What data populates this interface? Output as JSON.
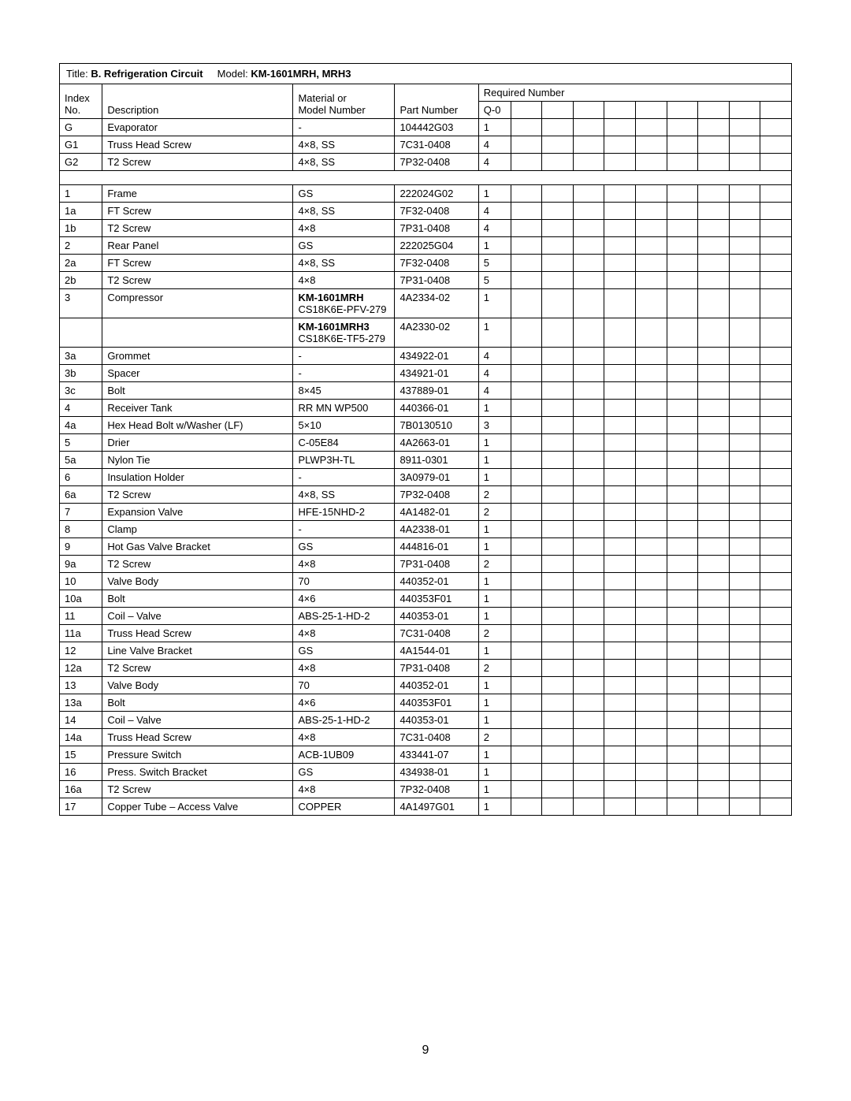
{
  "title_label": "Title: ",
  "title_value": "B. Refrigeration Circuit",
  "model_label": "Model: ",
  "model_value": "KM-1601MRH, MRH3",
  "required_number_label": "Required Number",
  "headers": {
    "index": "Index No.",
    "description": "Description",
    "material": "Material or Model Number",
    "part": "Part Number",
    "q0": "Q-0"
  },
  "rows": [
    {
      "idx": "G",
      "desc": "Evaporator",
      "mat": "-",
      "part": "104442G03",
      "q0": "1"
    },
    {
      "idx": "G1",
      "desc": "Truss Head Screw",
      "mat": "4×8, SS",
      "part": "7C31-0408",
      "q0": "4"
    },
    {
      "idx": "G2",
      "desc": "T2 Screw",
      "mat": "4×8, SS",
      "part": "7P32-0408",
      "q0": "4"
    }
  ],
  "rows2": [
    {
      "idx": "1",
      "desc": "Frame",
      "mat": "GS",
      "part": "222024G02",
      "q0": "1"
    },
    {
      "idx": "1a",
      "desc": "FT Screw",
      "mat": "4×8, SS",
      "part": "7F32-0408",
      "q0": "4"
    },
    {
      "idx": "1b",
      "desc": "T2 Screw",
      "mat": "4×8",
      "part": "7P31-0408",
      "q0": "4"
    },
    {
      "idx": "2",
      "desc": "Rear Panel",
      "mat": "GS",
      "part": "222025G04",
      "q0": "1"
    },
    {
      "idx": "2a",
      "desc": "FT Screw",
      "mat": "4×8, SS",
      "part": "7F32-0408",
      "q0": "5"
    },
    {
      "idx": "2b",
      "desc": "T2 Screw",
      "mat": "4×8",
      "part": "7P31-0408",
      "q0": "5"
    }
  ],
  "compressor_row1": {
    "idx": "3",
    "desc": "Compressor",
    "mat_bold": "KM-1601MRH",
    "mat_rest": "CS18K6E-PFV-279",
    "part": "4A2334-02",
    "q0": "1"
  },
  "compressor_row2": {
    "mat_bold": "KM-1601MRH3",
    "mat_rest": "CS18K6E-TF5-279",
    "part": "4A2330-02",
    "q0": "1"
  },
  "rows3": [
    {
      "idx": "3a",
      "desc": "Grommet",
      "mat": "-",
      "part": "434922-01",
      "q0": "4"
    },
    {
      "idx": "3b",
      "desc": "Spacer",
      "mat": "-",
      "part": "434921-01",
      "q0": "4"
    },
    {
      "idx": "3c",
      "desc": "Bolt",
      "mat": "8×45",
      "part": "437889-01",
      "q0": "4"
    },
    {
      "idx": "4",
      "desc": "Receiver Tank",
      "mat": "RR MN WP500",
      "part": "440366-01",
      "q0": "1"
    },
    {
      "idx": "4a",
      "desc": "Hex Head Bolt w/Washer (LF)",
      "mat": "5×10",
      "part": "7B0130510",
      "q0": "3"
    },
    {
      "idx": "5",
      "desc": "Drier",
      "mat": "C-05E84",
      "part": "4A2663-01",
      "q0": "1"
    },
    {
      "idx": "5a",
      "desc": "Nylon Tie",
      "mat": "PLWP3H-TL",
      "part": "8911-0301",
      "q0": "1"
    },
    {
      "idx": "6",
      "desc": "Insulation Holder",
      "mat": "-",
      "part": "3A0979-01",
      "q0": "1"
    },
    {
      "idx": "6a",
      "desc": "T2 Screw",
      "mat": "4×8, SS",
      "part": "7P32-0408",
      "q0": "2"
    },
    {
      "idx": "7",
      "desc": "Expansion Valve",
      "mat": "HFE-15NHD-2",
      "part": "4A1482-01",
      "q0": "2"
    },
    {
      "idx": "8",
      "desc": "Clamp",
      "mat": "-",
      "part": "4A2338-01",
      "q0": "1"
    },
    {
      "idx": "9",
      "desc": "Hot Gas Valve Bracket",
      "mat": "GS",
      "part": "444816-01",
      "q0": "1"
    },
    {
      "idx": "9a",
      "desc": "T2 Screw",
      "mat": "4×8",
      "part": "7P31-0408",
      "q0": "2"
    },
    {
      "idx": "10",
      "desc": "Valve Body",
      "mat": "70",
      "part": "440352-01",
      "q0": "1"
    },
    {
      "idx": "10a",
      "desc": "Bolt",
      "mat": "4×6",
      "part": "440353F01",
      "q0": "1"
    },
    {
      "idx": "11",
      "desc": "Coil – Valve",
      "mat": "ABS-25-1-HD-2",
      "part": "440353-01",
      "q0": "1"
    },
    {
      "idx": "11a",
      "desc": "Truss Head Screw",
      "mat": "4×8",
      "part": "7C31-0408",
      "q0": "2"
    },
    {
      "idx": "12",
      "desc": "Line Valve Bracket",
      "mat": "GS",
      "part": "4A1544-01",
      "q0": "1"
    },
    {
      "idx": "12a",
      "desc": "T2 Screw",
      "mat": "4×8",
      "part": "7P31-0408",
      "q0": "2"
    },
    {
      "idx": "13",
      "desc": "Valve Body",
      "mat": "70",
      "part": "440352-01",
      "q0": "1"
    },
    {
      "idx": "13a",
      "desc": "Bolt",
      "mat": "4×6",
      "part": "440353F01",
      "q0": "1"
    },
    {
      "idx": "14",
      "desc": "Coil – Valve",
      "mat": "ABS-25-1-HD-2",
      "part": "440353-01",
      "q0": "1"
    },
    {
      "idx": "14a",
      "desc": "Truss Head Screw",
      "mat": "4×8",
      "part": "7C31-0408",
      "q0": "2"
    },
    {
      "idx": "15",
      "desc": "Pressure Switch",
      "mat": "ACB-1UB09",
      "part": "433441-07",
      "q0": "1"
    },
    {
      "idx": "16",
      "desc": "Press. Switch Bracket",
      "mat": "GS",
      "part": "434938-01",
      "q0": "1"
    },
    {
      "idx": "16a",
      "desc": "T2 Screw",
      "mat": "4×8",
      "part": "7P32-0408",
      "q0": "1"
    },
    {
      "idx": "17",
      "desc": "Copper Tube – Access Valve",
      "mat": "COPPER",
      "part": "4A1497G01",
      "q0": "1"
    }
  ],
  "page_number": "9"
}
